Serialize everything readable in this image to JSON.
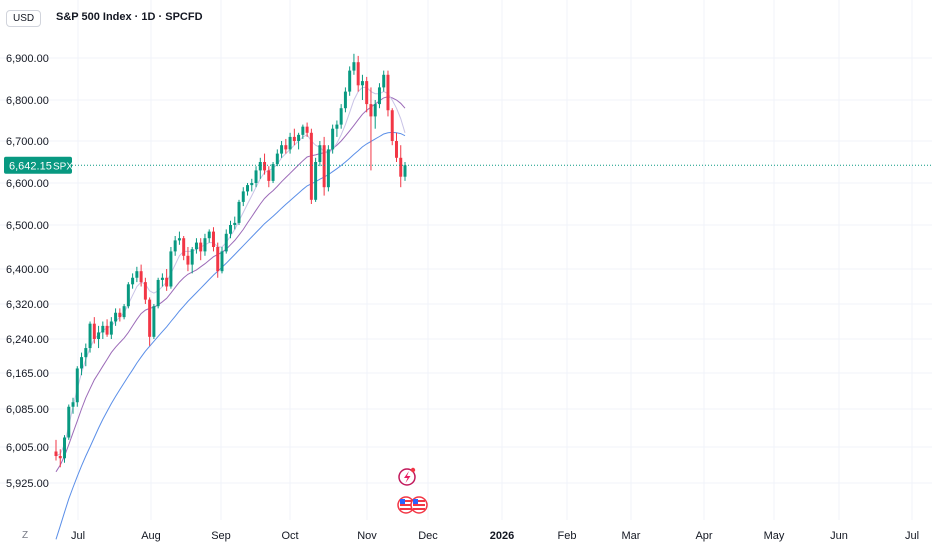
{
  "header": {
    "currency": "USD",
    "title": "S&P 500 Index · 1D · SPCFD"
  },
  "price_tag": {
    "value": "6,642.15",
    "symbol": "SPX",
    "price": 6642.15,
    "color": "#089981"
  },
  "zoom_button": "Z",
  "colors": {
    "up": "#089981",
    "down": "#f23645",
    "ma_short": "#c9c3e6",
    "ma_mid": "#9c6bb8",
    "ma_long": "#5b8fe8",
    "grid": "#f0f3fa"
  },
  "icons": [
    "lightning-event-icon",
    "us-flag-icon",
    "us-flag-icon"
  ],
  "chart_data": {
    "type": "candlestick",
    "y_ticks": [
      6900,
      6800,
      6700,
      6600,
      6500,
      6400,
      6320,
      6240,
      6165,
      6085,
      6005,
      5925
    ],
    "y_tick_labels": [
      "6,900.00",
      "6,800.00",
      "6,700.00",
      "6,600.00",
      "6,500.00",
      "6,400.00",
      "6,320.00",
      "6,240.00",
      "6,165.00",
      "6,085.00",
      "6,005.00",
      "5,925.00"
    ],
    "x_labels": [
      {
        "label": "Jul",
        "bold": false
      },
      {
        "label": "Aug",
        "bold": false
      },
      {
        "label": "Sep",
        "bold": false
      },
      {
        "label": "Oct",
        "bold": false
      },
      {
        "label": "Nov",
        "bold": false
      },
      {
        "label": "Dec",
        "bold": false
      },
      {
        "label": "2026",
        "bold": true
      },
      {
        "label": "Feb",
        "bold": false
      },
      {
        "label": "Mar",
        "bold": false
      },
      {
        "label": "Apr",
        "bold": false
      },
      {
        "label": "May",
        "bold": false
      },
      {
        "label": "Jun",
        "bold": false
      },
      {
        "label": "Jul",
        "bold": false
      }
    ],
    "candles": [
      [
        5995,
        6020,
        5975,
        5985
      ],
      [
        5985,
        6000,
        5960,
        5980
      ],
      [
        5980,
        6030,
        5970,
        6025
      ],
      [
        6025,
        6095,
        6020,
        6090
      ],
      [
        6090,
        6110,
        6075,
        6100
      ],
      [
        6100,
        6180,
        6090,
        6175
      ],
      [
        6175,
        6210,
        6160,
        6200
      ],
      [
        6200,
        6230,
        6180,
        6220
      ],
      [
        6220,
        6280,
        6210,
        6275
      ],
      [
        6275,
        6290,
        6230,
        6240
      ],
      [
        6240,
        6270,
        6220,
        6255
      ],
      [
        6255,
        6280,
        6240,
        6270
      ],
      [
        6270,
        6285,
        6245,
        6250
      ],
      [
        6250,
        6290,
        6240,
        6280
      ],
      [
        6280,
        6310,
        6270,
        6300
      ],
      [
        6300,
        6310,
        6280,
        6290
      ],
      [
        6290,
        6320,
        6285,
        6315
      ],
      [
        6315,
        6370,
        6310,
        6365
      ],
      [
        6365,
        6390,
        6355,
        6380
      ],
      [
        6380,
        6405,
        6370,
        6395
      ],
      [
        6395,
        6410,
        6360,
        6370
      ],
      [
        6370,
        6380,
        6320,
        6330
      ],
      [
        6330,
        6335,
        6225,
        6245
      ],
      [
        6245,
        6320,
        6240,
        6315
      ],
      [
        6315,
        6380,
        6310,
        6375
      ],
      [
        6375,
        6390,
        6360,
        6380
      ],
      [
        6380,
        6400,
        6350,
        6360
      ],
      [
        6360,
        6450,
        6355,
        6440
      ],
      [
        6440,
        6475,
        6430,
        6465
      ],
      [
        6465,
        6485,
        6455,
        6470
      ],
      [
        6470,
        6475,
        6420,
        6430
      ],
      [
        6430,
        6450,
        6395,
        6410
      ],
      [
        6410,
        6450,
        6390,
        6445
      ],
      [
        6445,
        6470,
        6435,
        6460
      ],
      [
        6460,
        6470,
        6420,
        6440
      ],
      [
        6440,
        6480,
        6430,
        6470
      ],
      [
        6470,
        6490,
        6460,
        6485
      ],
      [
        6485,
        6495,
        6440,
        6450
      ],
      [
        6450,
        6460,
        6380,
        6395
      ],
      [
        6395,
        6450,
        6390,
        6440
      ],
      [
        6440,
        6490,
        6435,
        6480
      ],
      [
        6480,
        6510,
        6470,
        6500
      ],
      [
        6500,
        6520,
        6490,
        6505
      ],
      [
        6505,
        6560,
        6500,
        6555
      ],
      [
        6555,
        6590,
        6545,
        6580
      ],
      [
        6580,
        6600,
        6570,
        6595
      ],
      [
        6595,
        6610,
        6580,
        6600
      ],
      [
        6600,
        6640,
        6590,
        6630
      ],
      [
        6630,
        6660,
        6610,
        6650
      ],
      [
        6650,
        6670,
        6620,
        6630
      ],
      [
        6630,
        6640,
        6590,
        6605
      ],
      [
        6605,
        6650,
        6600,
        6645
      ],
      [
        6645,
        6680,
        6640,
        6670
      ],
      [
        6670,
        6700,
        6660,
        6690
      ],
      [
        6690,
        6705,
        6670,
        6680
      ],
      [
        6680,
        6720,
        6670,
        6710
      ],
      [
        6710,
        6730,
        6690,
        6700
      ],
      [
        6700,
        6720,
        6680,
        6715
      ],
      [
        6715,
        6740,
        6705,
        6735
      ],
      [
        6735,
        6745,
        6710,
        6720
      ],
      [
        6720,
        6730,
        6550,
        6560
      ],
      [
        6560,
        6660,
        6555,
        6650
      ],
      [
        6650,
        6700,
        6640,
        6690
      ],
      [
        6690,
        6710,
        6570,
        6590
      ],
      [
        6590,
        6690,
        6580,
        6680
      ],
      [
        6680,
        6740,
        6670,
        6730
      ],
      [
        6730,
        6750,
        6710,
        6740
      ],
      [
        6740,
        6790,
        6730,
        6780
      ],
      [
        6780,
        6830,
        6770,
        6820
      ],
      [
        6820,
        6880,
        6810,
        6870
      ],
      [
        6870,
        6910,
        6860,
        6890
      ],
      [
        6890,
        6905,
        6820,
        6835
      ],
      [
        6835,
        6860,
        6800,
        6845
      ],
      [
        6845,
        6855,
        6770,
        6790
      ],
      [
        6790,
        6830,
        6630,
        6760
      ],
      [
        6760,
        6800,
        6730,
        6790
      ],
      [
        6790,
        6840,
        6780,
        6830
      ],
      [
        6830,
        6870,
        6820,
        6860
      ],
      [
        6860,
        6870,
        6760,
        6775
      ],
      [
        6775,
        6780,
        6690,
        6700
      ],
      [
        6700,
        6720,
        6650,
        6660
      ],
      [
        6660,
        6690,
        6590,
        6615
      ],
      [
        6615,
        6650,
        6605,
        6642.15
      ]
    ],
    "ma_short": [
      5985,
      5990,
      6010,
      6050,
      6090,
      6130,
      6165,
      6195,
      6220,
      6240,
      6250,
      6260,
      6265,
      6270,
      6280,
      6290,
      6300,
      6320,
      6340,
      6360,
      6370,
      6365,
      6350,
      6345,
      6350,
      6360,
      6370,
      6390,
      6410,
      6430,
      6440,
      6440,
      6440,
      6445,
      6450,
      6455,
      6460,
      6460,
      6450,
      6450,
      6460,
      6475,
      6490,
      6510,
      6530,
      6550,
      6570,
      6590,
      6610,
      6625,
      6630,
      6635,
      6645,
      6660,
      6670,
      6680,
      6690,
      6700,
      6710,
      6715,
      6700,
      6690,
      6685,
      6675,
      6670,
      6680,
      6695,
      6715,
      6740,
      6770,
      6800,
      6820,
      6830,
      6830,
      6820,
      6815,
      6815,
      6820,
      6815,
      6800,
      6780,
      6755,
      6720
    ],
    "ma_mid": [
      5950,
      5965,
      5985,
      6010,
      6035,
      6060,
      6085,
      6110,
      6130,
      6150,
      6165,
      6180,
      6195,
      6210,
      6222,
      6232,
      6242,
      6255,
      6270,
      6285,
      6298,
      6306,
      6310,
      6313,
      6318,
      6325,
      6333,
      6345,
      6358,
      6370,
      6380,
      6388,
      6393,
      6398,
      6405,
      6412,
      6420,
      6428,
      6433,
      6438,
      6445,
      6455,
      6465,
      6477,
      6490,
      6505,
      6520,
      6535,
      6550,
      6563,
      6573,
      6582,
      6592,
      6603,
      6613,
      6623,
      6633,
      6643,
      6653,
      6662,
      6665,
      6667,
      6670,
      6672,
      6675,
      6682,
      6690,
      6700,
      6712,
      6725,
      6738,
      6752,
      6765,
      6775,
      6783,
      6790,
      6798,
      6805,
      6808,
      6805,
      6800,
      6792,
      6780
    ],
    "ma_long": [
      5800,
      5830,
      5860,
      5890,
      5915,
      5940,
      5963,
      5985,
      6005,
      6025,
      6045,
      6063,
      6080,
      6097,
      6113,
      6128,
      6143,
      6158,
      6172,
      6187,
      6200,
      6213,
      6224,
      6235,
      6246,
      6257,
      6268,
      6280,
      6292,
      6304,
      6315,
      6326,
      6336,
      6346,
      6356,
      6366,
      6376,
      6386,
      6395,
      6404,
      6413,
      6423,
      6433,
      6443,
      6453,
      6463,
      6473,
      6483,
      6493,
      6503,
      6512,
      6521,
      6530,
      6540,
      6549,
      6558,
      6567,
      6576,
      6585,
      6593,
      6598,
      6603,
      6609,
      6614,
      6620,
      6627,
      6634,
      6642,
      6650,
      6659,
      6668,
      6677,
      6686,
      6693,
      6699,
      6705,
      6711,
      6717,
      6720,
      6721,
      6720,
      6718,
      6713
    ]
  }
}
